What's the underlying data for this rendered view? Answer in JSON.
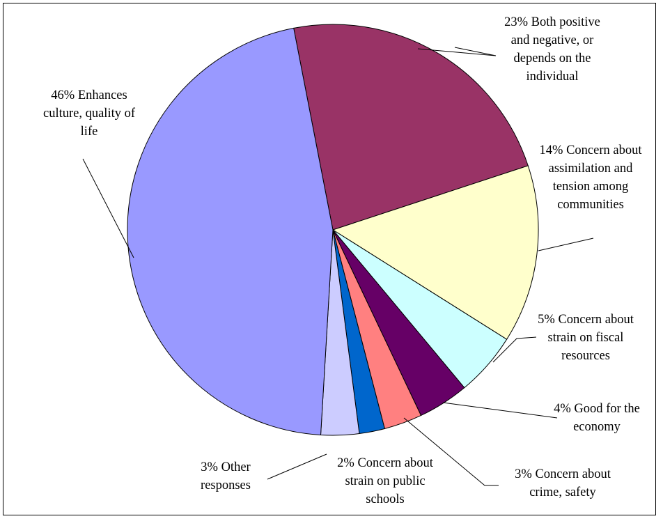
{
  "chart_data": {
    "type": "pie",
    "title": "",
    "slices": [
      {
        "value": 23,
        "label_lines": [
          "23% Both positive",
          "and negative, or",
          "depends on the",
          "individual"
        ],
        "color": "#993366"
      },
      {
        "value": 14,
        "label_lines": [
          "14% Concern about",
          "assimilation and",
          "tension among",
          "communities"
        ],
        "color": "#FFFFCC"
      },
      {
        "value": 5,
        "label_lines": [
          "5% Concern about",
          "strain on fiscal",
          "resources"
        ],
        "color": "#CCFFFF"
      },
      {
        "value": 4,
        "label_lines": [
          "4% Good for the",
          "economy"
        ],
        "color": "#660066"
      },
      {
        "value": 3,
        "label_lines": [
          "3% Concern about",
          "crime, safety"
        ],
        "color": "#FF8080"
      },
      {
        "value": 2,
        "label_lines": [
          "2% Concern about",
          "strain on public",
          "schools"
        ],
        "color": "#0066CC"
      },
      {
        "value": 3,
        "label_lines": [
          "3% Other",
          "responses"
        ],
        "color": "#CCCCFF"
      },
      {
        "value": 46,
        "label_lines": [
          "46% Enhances",
          "culture, quality of",
          "life"
        ],
        "color": "#9999FF"
      }
    ],
    "start_angle_deg": -11,
    "direction": "clockwise",
    "legend": "none",
    "labels": "outside-with-leader-lines"
  }
}
